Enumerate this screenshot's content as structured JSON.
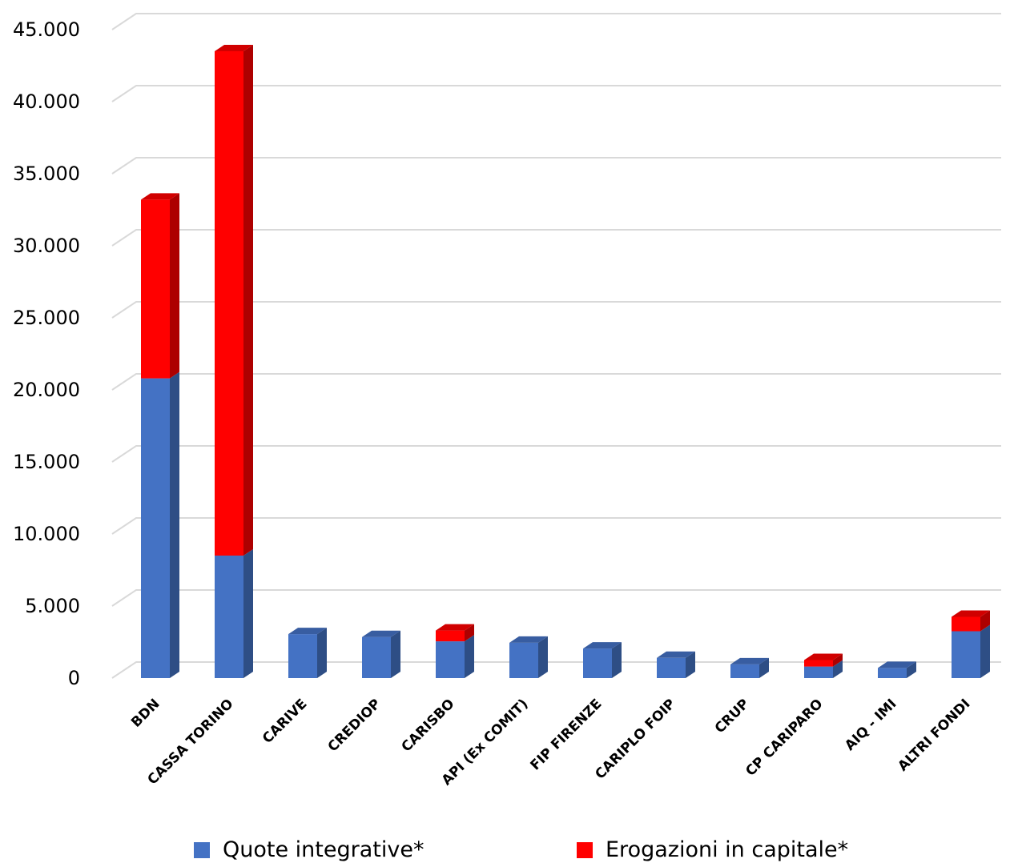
{
  "chart_data": {
    "type": "bar",
    "stacked": true,
    "categories": [
      "BDN",
      "CASSA TORINO",
      "CARIVE",
      "CREDIOP",
      "CARISBO",
      "API (Ex COMIT)",
      "FIP FIRENZE",
      "CARIPLO FOIP",
      "CRUP",
      "CP CARIPARO",
      "AIQ - IMI",
      "ALTRI FONDI"
    ],
    "series": [
      {
        "name": "Quote integrative*",
        "color": "#4472C4",
        "values": [
          20800,
          8500,
          3050,
          2850,
          2550,
          2450,
          2050,
          1400,
          950,
          800,
          700,
          3250
        ]
      },
      {
        "name": "Erogazioni in capitale*",
        "color": "#FF0000",
        "values": [
          12400,
          35000,
          0,
          0,
          750,
          0,
          0,
          0,
          0,
          450,
          0,
          1000
        ]
      }
    ],
    "ylim": [
      0,
      45000
    ],
    "yticks": [
      0,
      5000,
      10000,
      15000,
      20000,
      25000,
      30000,
      35000,
      40000,
      45000
    ],
    "ytick_labels": [
      "0",
      "5.000",
      "10.000",
      "15.000",
      "20.000",
      "25.000",
      "30.000",
      "35.000",
      "40.000",
      "45.000"
    ],
    "grid": true,
    "legend_position": "bottom"
  }
}
